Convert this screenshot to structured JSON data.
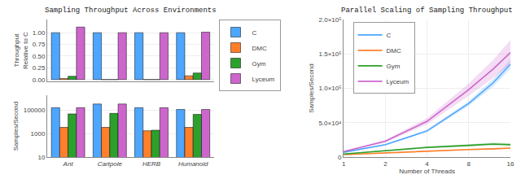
{
  "chart_data": [
    {
      "type": "bar",
      "title": "Sampling Throughput Across Environments",
      "categories": [
        "Ant",
        "Cartpole",
        "HERB",
        "Humanoid"
      ],
      "series": [
        {
          "name": "C",
          "color": "#4da6ff",
          "values": [
            1.0,
            1.0,
            1.0,
            1.0
          ]
        },
        {
          "name": "DMC",
          "color": "#ff7f2a",
          "values": [
            0.02,
            0.0,
            0.0,
            0.08
          ]
        },
        {
          "name": "Gym",
          "color": "#2ca02c",
          "values": [
            0.07,
            0.0,
            0.0,
            0.14
          ]
        },
        {
          "name": "Lyceum",
          "color": "#cc66cc",
          "values": [
            1.12,
            1.0,
            1.0,
            1.01
          ]
        }
      ],
      "ylabel": "Throughput\nRelative to C",
      "ylim": [
        -0.04,
        1.28
      ],
      "yticks": [
        {
          "value": 0,
          "label": "0.00"
        },
        0.25,
        {
          "value": 0.5,
          "label": "0.50"
        },
        0.75,
        {
          "value": 1,
          "label": "1.00"
        }
      ],
      "grid": true,
      "legend": "right",
      "tick_labels": "y"
    },
    {
      "type": "bar",
      "categories": [
        "Ant",
        "Cartpole",
        "HERB",
        "Humanoid"
      ],
      "series": [
        {
          "name": "C",
          "color": "#4da6ff",
          "values": [
            170000,
            350000,
            170000,
            120000
          ]
        },
        {
          "name": "DMC",
          "color": "#ff7f2a",
          "values": [
            3500,
            3500,
            1800,
            3500
          ]
        },
        {
          "name": "Gym",
          "color": "#2ca02c",
          "values": [
            50000,
            55000,
            2000,
            45000
          ]
        },
        {
          "name": "Lyceum",
          "color": "#cc66cc",
          "values": [
            170000,
            350000,
            170000,
            120000
          ]
        }
      ],
      "ylabel": "Samples/Second",
      "log": "y",
      "ylim": [
        10,
        2000000
      ],
      "yticks": [
        10,
        1000,
        100000
      ],
      "grid": true
    },
    {
      "type": "line",
      "title": "Parallel Scaling of Sampling Throughput",
      "xlabel": "Number of Threads",
      "ylabel": "Samples/Second",
      "x": [
        1,
        2,
        4,
        8,
        12,
        16
      ],
      "series": [
        {
          "name": "C",
          "color": "#4da6ff",
          "values": [
            7000,
            18000,
            38000,
            78000,
            108000,
            135000
          ],
          "std": [
            400,
            900,
            1800,
            3500,
            5500,
            7000
          ]
        },
        {
          "name": "DMC",
          "color": "#ff7f2a",
          "values": [
            3500,
            6000,
            9000,
            11000,
            12000,
            13000
          ],
          "std": [
            200,
            400,
            700,
            900,
            1000,
            1200
          ]
        },
        {
          "name": "Gym",
          "color": "#2ca02c",
          "values": [
            4500,
            9000,
            14000,
            17000,
            19000,
            18000
          ],
          "std": [
            300,
            700,
            1000,
            1500,
            2000,
            2500
          ]
        },
        {
          "name": "Lyceum",
          "color": "#cc66cc",
          "values": [
            8000,
            23000,
            52000,
            98000,
            128000,
            152000
          ],
          "std": [
            800,
            2000,
            4500,
            9000,
            13000,
            18000
          ]
        }
      ],
      "log": "x",
      "xlim": [
        1,
        16
      ],
      "xticks": [
        1,
        2,
        4,
        8,
        16
      ],
      "ylim": [
        0,
        200000
      ],
      "yticks": [
        0,
        {
          "value": 50000,
          "label": "5.0×10⁴"
        },
        {
          "value": 100000,
          "label": "1.0×10⁵"
        },
        {
          "value": 150000,
          "label": "1.5×10⁵"
        },
        {
          "value": 200000,
          "label": "2.0×10⁵"
        }
      ],
      "grid": true,
      "legend": "upper left"
    }
  ]
}
